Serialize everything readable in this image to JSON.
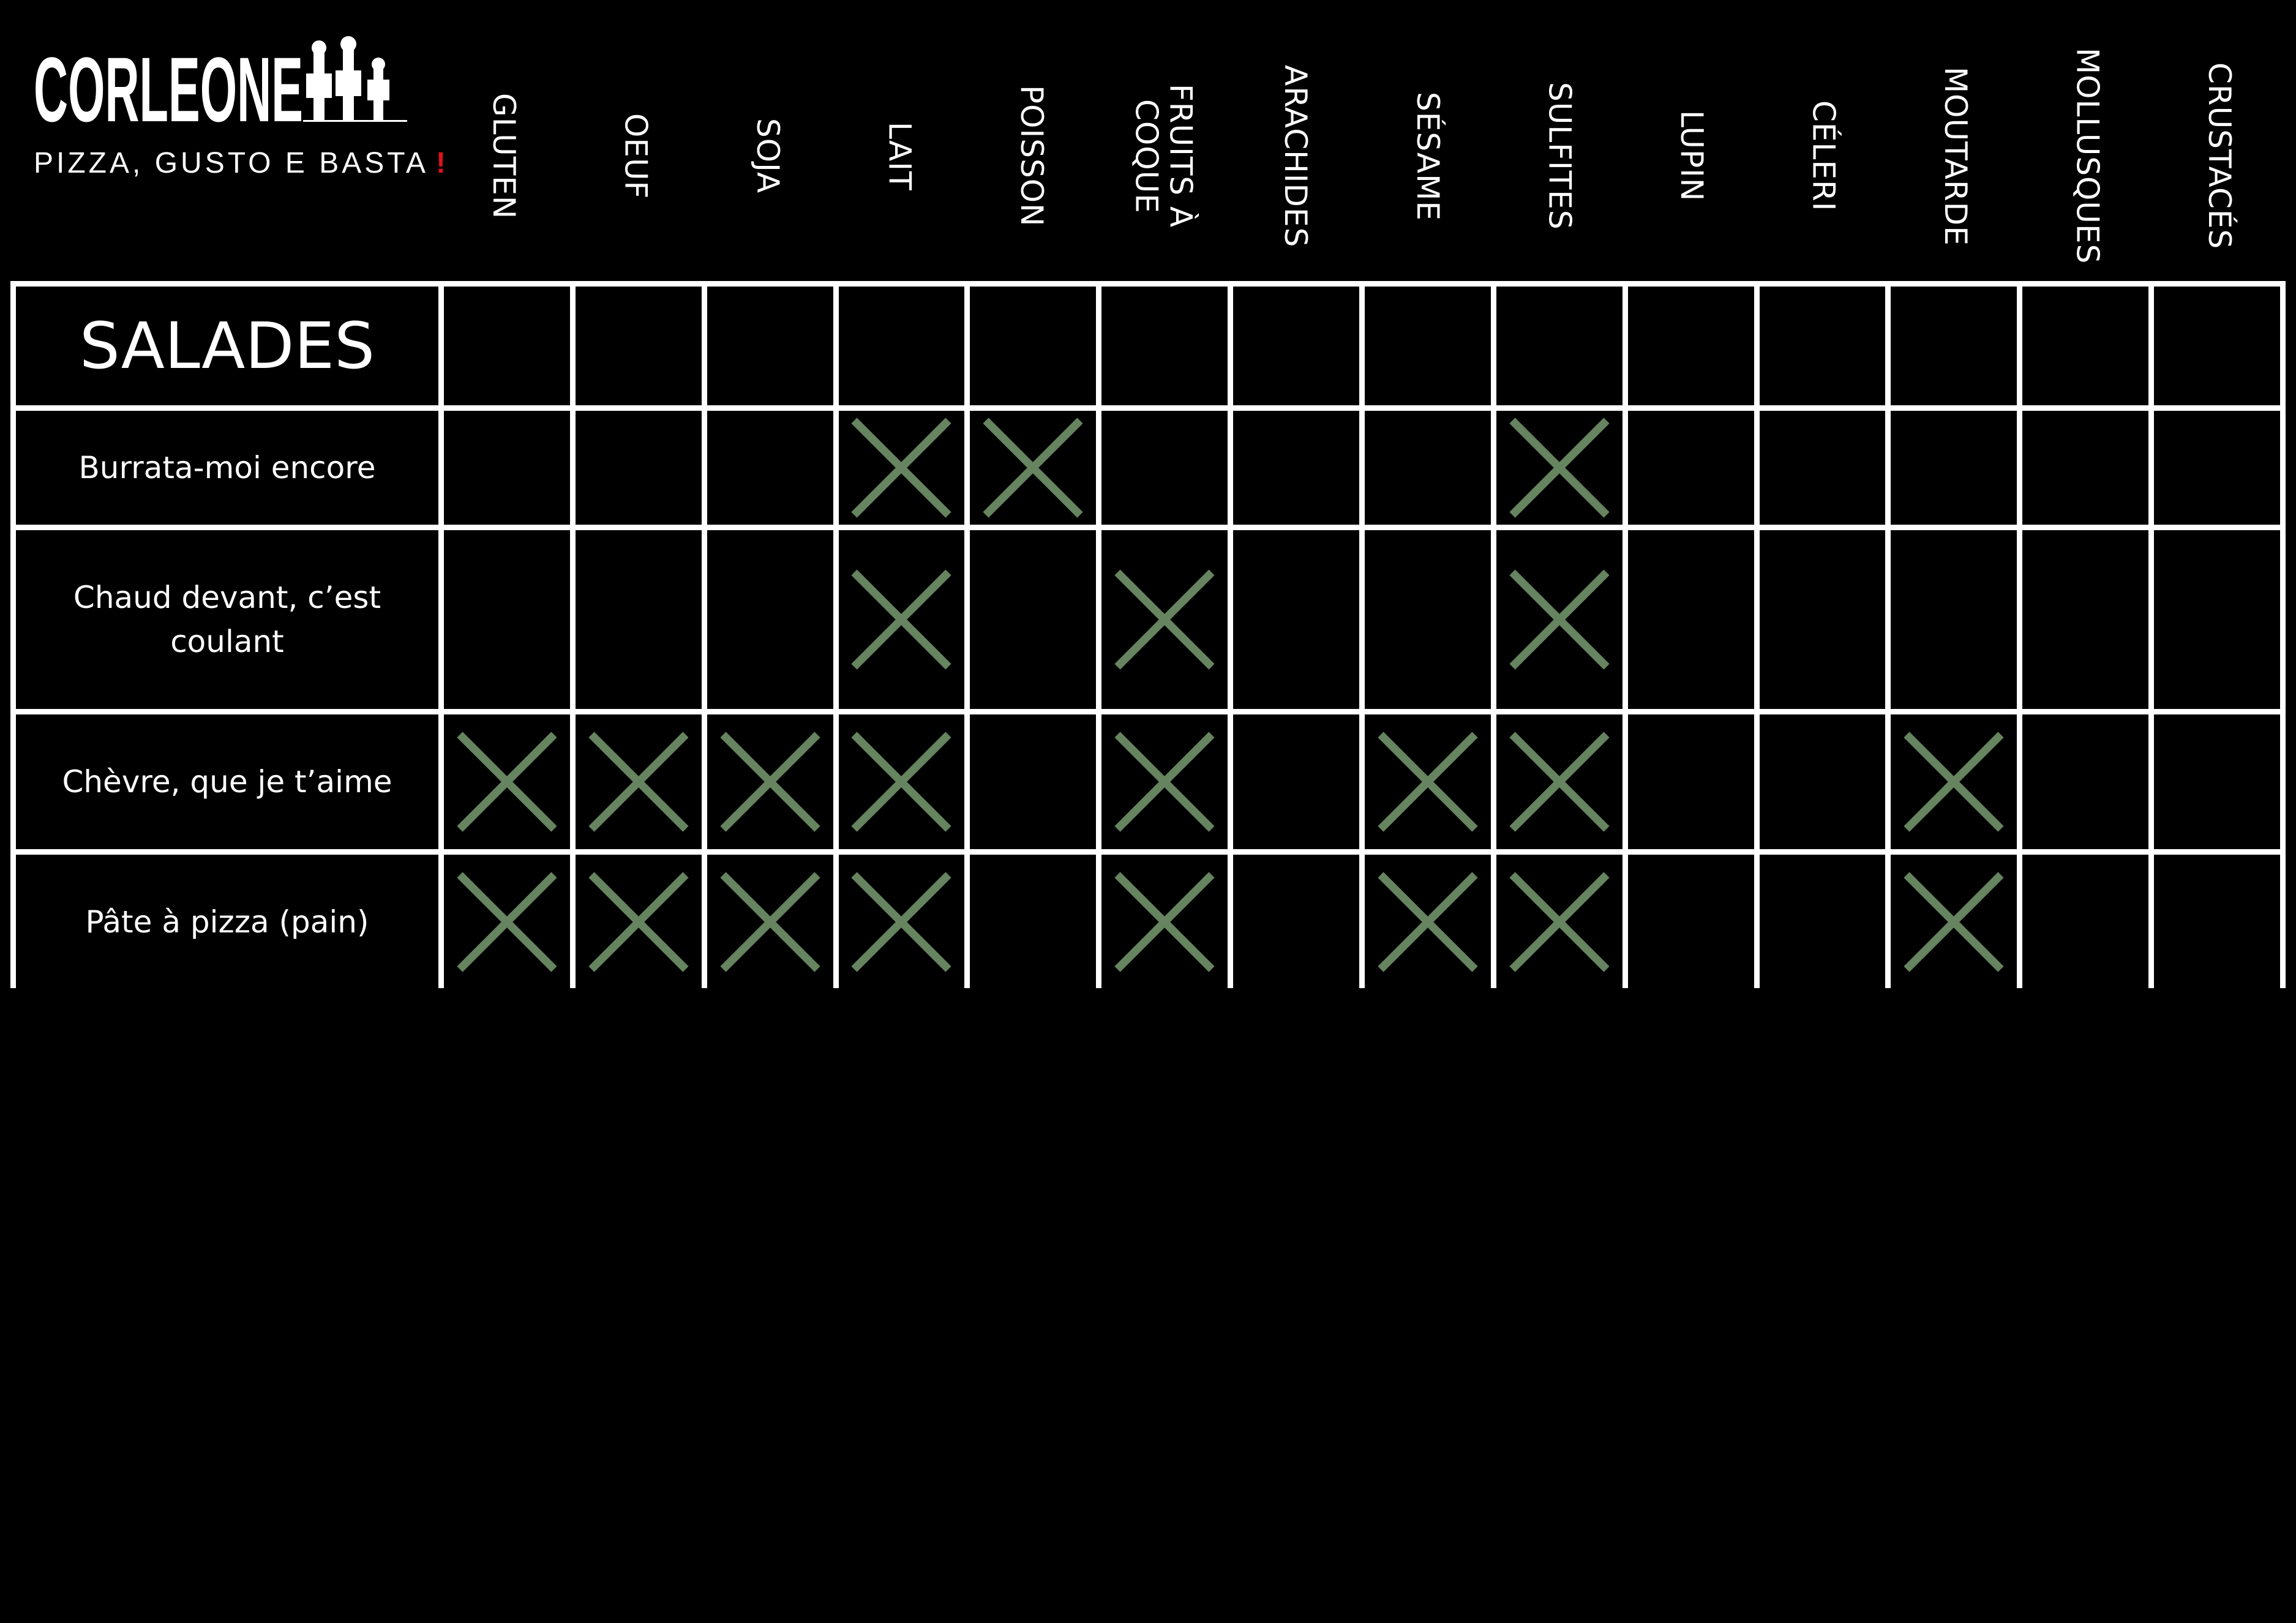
{
  "logo": {
    "brand": "CORLEONE",
    "tagline": "PIZZA, GUSTO E BASTA",
    "tagline_mark": "!"
  },
  "colors": {
    "background": "#000000",
    "grid": "#ffffff",
    "cross": "#66845f",
    "accent": "#e0111b"
  },
  "allergens": [
    "GLUTEN",
    "OEUF",
    "SOJA",
    "LAIT",
    "POISSON",
    "FRUITS À COQUE",
    "ARACHIDES",
    "SÉSAME",
    "SULFITES",
    "LUPIN",
    "CÉLERI",
    "MOUTARDE",
    "MOLLUSQUES",
    "CRUSTACÉS"
  ],
  "section_title": "SALADES",
  "rows": [
    {
      "name": "Burrata-moi encore",
      "allergens": [
        "LAIT",
        "POISSON",
        "SULFITES"
      ]
    },
    {
      "name": "Chaud devant, c’est coulant",
      "allergens": [
        "LAIT",
        "FRUITS À COQUE",
        "SULFITES"
      ]
    },
    {
      "name": "Chèvre, que je t’aime",
      "allergens": [
        "GLUTEN",
        "OEUF",
        "SOJA",
        "LAIT",
        "FRUITS À COQUE",
        "SÉSAME",
        "SULFITES",
        "MOUTARDE"
      ]
    },
    {
      "name": "Pâte à pizza (pain)",
      "allergens": [
        "GLUTEN",
        "OEUF",
        "SOJA",
        "LAIT",
        "FRUITS À COQUE",
        "SÉSAME",
        "SULFITES",
        "MOUTARDE"
      ]
    }
  ]
}
